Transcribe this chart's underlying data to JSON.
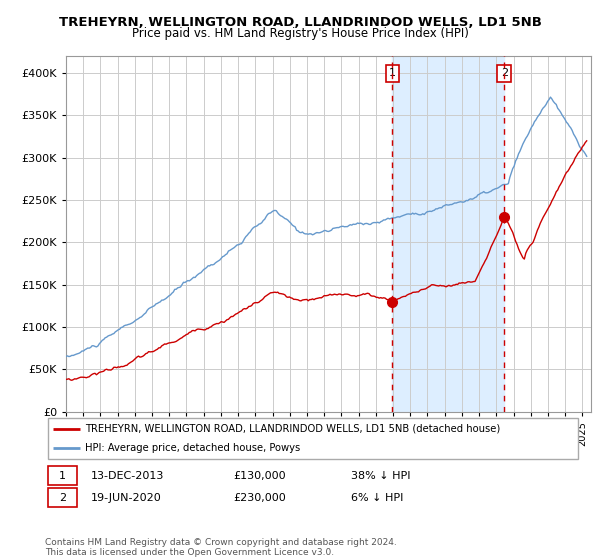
{
  "title": "TREHEYRN, WELLINGTON ROAD, LLANDRINDOD WELLS, LD1 5NB",
  "subtitle": "Price paid vs. HM Land Registry's House Price Index (HPI)",
  "red_label": "TREHEYRN, WELLINGTON ROAD, LLANDRINDOD WELLS, LD1 5NB (detached house)",
  "blue_label": "HPI: Average price, detached house, Powys",
  "annotation1": {
    "num": "1",
    "date": "13-DEC-2013",
    "price": "£130,000",
    "pct": "38% ↓ HPI"
  },
  "annotation2": {
    "num": "2",
    "date": "19-JUN-2020",
    "price": "£230,000",
    "pct": "6% ↓ HPI"
  },
  "footer": "Contains HM Land Registry data © Crown copyright and database right 2024.\nThis data is licensed under the Open Government Licence v3.0.",
  "sale1_year": 2013.96,
  "sale1_value": 130000,
  "sale2_year": 2020.46,
  "sale2_value": 230000,
  "ylim": [
    0,
    420000
  ],
  "xlim_start": 1995.0,
  "xlim_end": 2025.5,
  "shaded_start": 2013.96,
  "shaded_end": 2020.46,
  "background_color": "#ffffff",
  "grid_color": "#cccccc",
  "shade_color": "#ddeeff",
  "red_color": "#cc0000",
  "blue_color": "#6699cc",
  "yticks": [
    0,
    50000,
    100000,
    150000,
    200000,
    250000,
    300000,
    350000,
    400000
  ],
  "xticks_start": 1995,
  "xticks_end": 2026
}
